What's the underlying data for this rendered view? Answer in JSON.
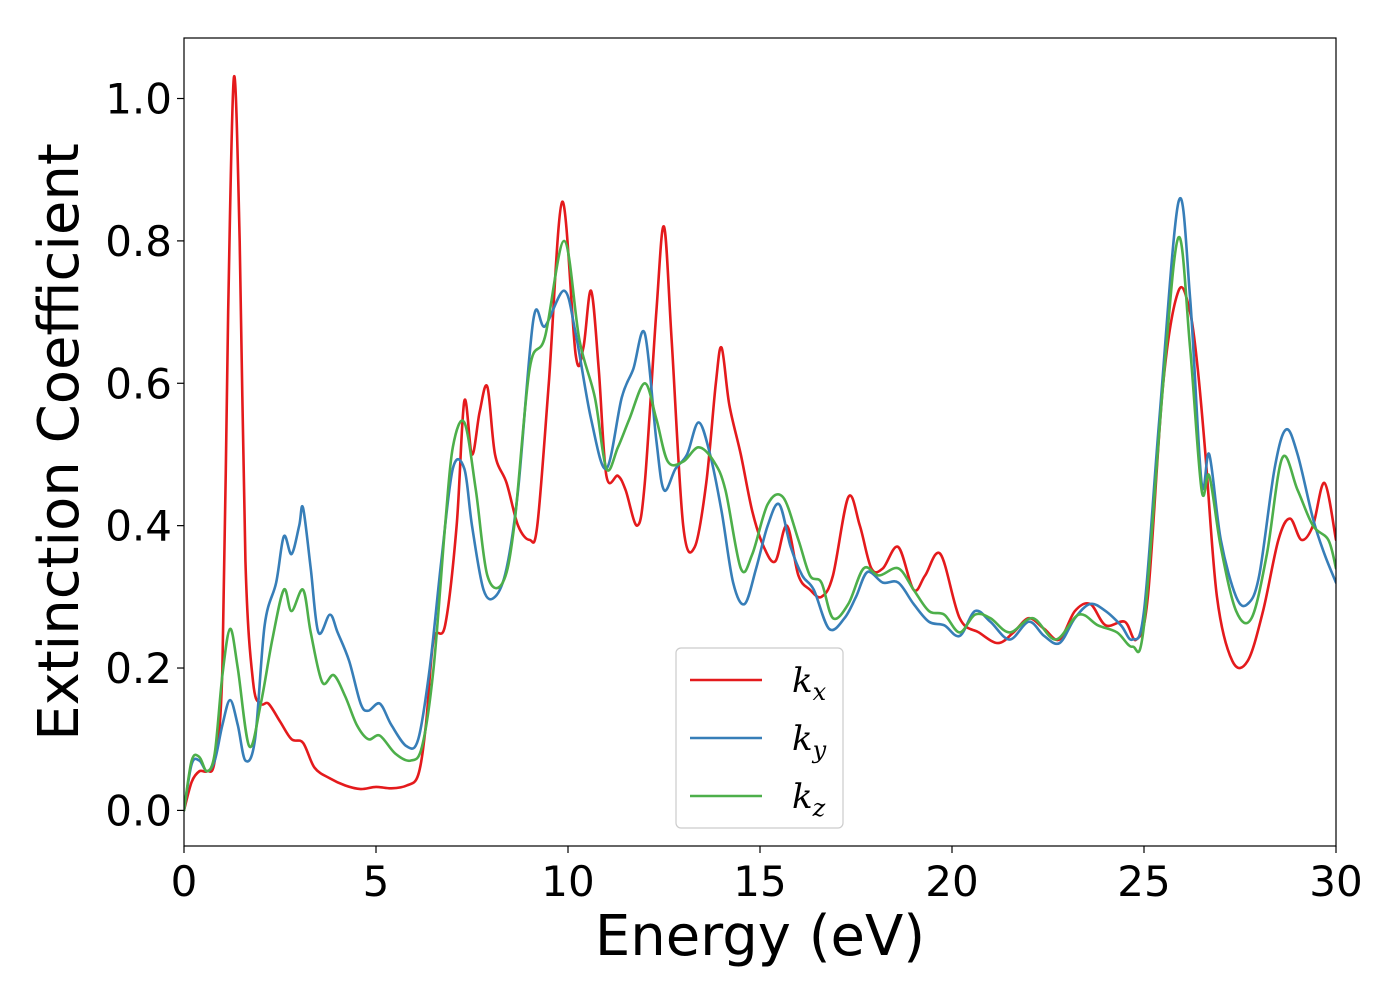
{
  "chart_data": {
    "type": "line",
    "title": "",
    "xlabel": "Energy (eV)",
    "ylabel": "Extinction Coefficient",
    "xlim": [
      0,
      30
    ],
    "ylim": [
      -0.05,
      1.085
    ],
    "x_ticks": [
      0,
      5,
      10,
      15,
      20,
      25,
      30
    ],
    "y_ticks": [
      0.0,
      0.2,
      0.4,
      0.6,
      0.8,
      1.0
    ],
    "x_tick_labels": [
      "0",
      "5",
      "10",
      "15",
      "20",
      "25",
      "30"
    ],
    "y_tick_labels": [
      "0.0",
      "0.2",
      "0.4",
      "0.6",
      "0.8",
      "1.0"
    ],
    "grid": false,
    "legend_position": "bottom-center",
    "series": [
      {
        "name": "kx",
        "base": "k",
        "sub": "x",
        "color": "#e41a1c",
        "points": [
          [
            0,
            0
          ],
          [
            0.2,
            0.04
          ],
          [
            0.4,
            0.055
          ],
          [
            0.6,
            0.055
          ],
          [
            0.8,
            0.07
          ],
          [
            1.0,
            0.2
          ],
          [
            1.15,
            0.7
          ],
          [
            1.3,
            1.03
          ],
          [
            1.45,
            0.8
          ],
          [
            1.6,
            0.35
          ],
          [
            1.8,
            0.18
          ],
          [
            2.0,
            0.15
          ],
          [
            2.2,
            0.15
          ],
          [
            2.5,
            0.125
          ],
          [
            2.8,
            0.1
          ],
          [
            3.1,
            0.095
          ],
          [
            3.4,
            0.06
          ],
          [
            3.8,
            0.045
          ],
          [
            4.2,
            0.035
          ],
          [
            4.6,
            0.03
          ],
          [
            5.0,
            0.033
          ],
          [
            5.4,
            0.031
          ],
          [
            5.8,
            0.035
          ],
          [
            6.1,
            0.05
          ],
          [
            6.3,
            0.12
          ],
          [
            6.5,
            0.24
          ],
          [
            6.8,
            0.26
          ],
          [
            7.1,
            0.4
          ],
          [
            7.3,
            0.575
          ],
          [
            7.5,
            0.5
          ],
          [
            7.7,
            0.56
          ],
          [
            7.9,
            0.595
          ],
          [
            8.1,
            0.5
          ],
          [
            8.4,
            0.46
          ],
          [
            8.7,
            0.4
          ],
          [
            9.0,
            0.38
          ],
          [
            9.2,
            0.4
          ],
          [
            9.5,
            0.6
          ],
          [
            9.85,
            0.855
          ],
          [
            10.2,
            0.64
          ],
          [
            10.4,
            0.65
          ],
          [
            10.6,
            0.73
          ],
          [
            10.8,
            0.62
          ],
          [
            11.0,
            0.47
          ],
          [
            11.3,
            0.47
          ],
          [
            11.5,
            0.45
          ],
          [
            11.8,
            0.4
          ],
          [
            12.0,
            0.46
          ],
          [
            12.3,
            0.7
          ],
          [
            12.5,
            0.82
          ],
          [
            12.7,
            0.66
          ],
          [
            13.0,
            0.4
          ],
          [
            13.3,
            0.37
          ],
          [
            13.6,
            0.46
          ],
          [
            13.85,
            0.6
          ],
          [
            14.0,
            0.65
          ],
          [
            14.2,
            0.57
          ],
          [
            14.5,
            0.5
          ],
          [
            14.8,
            0.42
          ],
          [
            15.1,
            0.37
          ],
          [
            15.4,
            0.35
          ],
          [
            15.7,
            0.4
          ],
          [
            16.0,
            0.33
          ],
          [
            16.3,
            0.31
          ],
          [
            16.6,
            0.3
          ],
          [
            16.9,
            0.33
          ],
          [
            17.3,
            0.44
          ],
          [
            17.6,
            0.4
          ],
          [
            17.9,
            0.34
          ],
          [
            18.2,
            0.34
          ],
          [
            18.6,
            0.37
          ],
          [
            19.0,
            0.31
          ],
          [
            19.3,
            0.33
          ],
          [
            19.7,
            0.36
          ],
          [
            20.2,
            0.27
          ],
          [
            20.7,
            0.25
          ],
          [
            21.2,
            0.235
          ],
          [
            21.6,
            0.25
          ],
          [
            22.0,
            0.27
          ],
          [
            22.4,
            0.255
          ],
          [
            22.8,
            0.24
          ],
          [
            23.2,
            0.28
          ],
          [
            23.6,
            0.29
          ],
          [
            24.0,
            0.26
          ],
          [
            24.5,
            0.265
          ],
          [
            24.8,
            0.24
          ],
          [
            25.1,
            0.3
          ],
          [
            25.5,
            0.6
          ],
          [
            25.9,
            0.73
          ],
          [
            26.2,
            0.7
          ],
          [
            26.4,
            0.62
          ],
          [
            26.6,
            0.5
          ],
          [
            26.9,
            0.3
          ],
          [
            27.3,
            0.21
          ],
          [
            27.7,
            0.21
          ],
          [
            28.1,
            0.28
          ],
          [
            28.5,
            0.38
          ],
          [
            28.8,
            0.41
          ],
          [
            29.1,
            0.38
          ],
          [
            29.4,
            0.4
          ],
          [
            29.7,
            0.46
          ],
          [
            30,
            0.38
          ]
        ]
      },
      {
        "name": "ky",
        "base": "k",
        "sub": "y",
        "color": "#377eb8",
        "points": [
          [
            0,
            0
          ],
          [
            0.2,
            0.065
          ],
          [
            0.4,
            0.07
          ],
          [
            0.6,
            0.055
          ],
          [
            0.8,
            0.07
          ],
          [
            1.0,
            0.12
          ],
          [
            1.2,
            0.155
          ],
          [
            1.4,
            0.12
          ],
          [
            1.6,
            0.07
          ],
          [
            1.85,
            0.1
          ],
          [
            2.1,
            0.26
          ],
          [
            2.4,
            0.32
          ],
          [
            2.6,
            0.385
          ],
          [
            2.8,
            0.36
          ],
          [
            3.0,
            0.4
          ],
          [
            3.1,
            0.425
          ],
          [
            3.3,
            0.34
          ],
          [
            3.5,
            0.25
          ],
          [
            3.8,
            0.275
          ],
          [
            4.0,
            0.25
          ],
          [
            4.3,
            0.21
          ],
          [
            4.6,
            0.15
          ],
          [
            4.8,
            0.14
          ],
          [
            5.1,
            0.15
          ],
          [
            5.4,
            0.12
          ],
          [
            5.8,
            0.09
          ],
          [
            6.1,
            0.1
          ],
          [
            6.4,
            0.2
          ],
          [
            6.7,
            0.35
          ],
          [
            7.0,
            0.48
          ],
          [
            7.3,
            0.48
          ],
          [
            7.5,
            0.4
          ],
          [
            7.8,
            0.31
          ],
          [
            8.1,
            0.3
          ],
          [
            8.4,
            0.34
          ],
          [
            8.7,
            0.45
          ],
          [
            9.1,
            0.69
          ],
          [
            9.4,
            0.68
          ],
          [
            9.9,
            0.73
          ],
          [
            10.2,
            0.67
          ],
          [
            10.6,
            0.55
          ],
          [
            11.0,
            0.48
          ],
          [
            11.4,
            0.58
          ],
          [
            11.7,
            0.62
          ],
          [
            12.0,
            0.67
          ],
          [
            12.3,
            0.52
          ],
          [
            12.5,
            0.45
          ],
          [
            12.8,
            0.48
          ],
          [
            13.1,
            0.5
          ],
          [
            13.4,
            0.545
          ],
          [
            13.7,
            0.5
          ],
          [
            14.0,
            0.42
          ],
          [
            14.3,
            0.32
          ],
          [
            14.6,
            0.29
          ],
          [
            14.9,
            0.34
          ],
          [
            15.2,
            0.4
          ],
          [
            15.5,
            0.43
          ],
          [
            15.8,
            0.37
          ],
          [
            16.1,
            0.33
          ],
          [
            16.4,
            0.31
          ],
          [
            16.8,
            0.255
          ],
          [
            17.2,
            0.27
          ],
          [
            17.5,
            0.3
          ],
          [
            17.8,
            0.335
          ],
          [
            18.2,
            0.32
          ],
          [
            18.6,
            0.32
          ],
          [
            19.0,
            0.29
          ],
          [
            19.4,
            0.265
          ],
          [
            19.8,
            0.26
          ],
          [
            20.2,
            0.245
          ],
          [
            20.6,
            0.28
          ],
          [
            21.0,
            0.265
          ],
          [
            21.5,
            0.24
          ],
          [
            22.0,
            0.265
          ],
          [
            22.4,
            0.245
          ],
          [
            22.8,
            0.235
          ],
          [
            23.2,
            0.27
          ],
          [
            23.6,
            0.29
          ],
          [
            24.0,
            0.28
          ],
          [
            24.4,
            0.26
          ],
          [
            24.7,
            0.24
          ],
          [
            25.0,
            0.28
          ],
          [
            25.4,
            0.55
          ],
          [
            25.9,
            0.855
          ],
          [
            26.2,
            0.72
          ],
          [
            26.5,
            0.46
          ],
          [
            26.7,
            0.5
          ],
          [
            27.0,
            0.38
          ],
          [
            27.4,
            0.3
          ],
          [
            27.7,
            0.29
          ],
          [
            28.0,
            0.33
          ],
          [
            28.4,
            0.48
          ],
          [
            28.7,
            0.535
          ],
          [
            29.0,
            0.5
          ],
          [
            29.4,
            0.41
          ],
          [
            29.7,
            0.36
          ],
          [
            30,
            0.32
          ]
        ]
      },
      {
        "name": "kz",
        "base": "k",
        "sub": "z",
        "color": "#4daf4a",
        "points": [
          [
            0,
            0
          ],
          [
            0.2,
            0.07
          ],
          [
            0.4,
            0.075
          ],
          [
            0.6,
            0.055
          ],
          [
            0.8,
            0.08
          ],
          [
            1.0,
            0.19
          ],
          [
            1.2,
            0.255
          ],
          [
            1.4,
            0.2
          ],
          [
            1.7,
            0.09
          ],
          [
            2.0,
            0.15
          ],
          [
            2.3,
            0.24
          ],
          [
            2.6,
            0.31
          ],
          [
            2.8,
            0.28
          ],
          [
            3.1,
            0.31
          ],
          [
            3.3,
            0.25
          ],
          [
            3.6,
            0.18
          ],
          [
            3.9,
            0.19
          ],
          [
            4.2,
            0.16
          ],
          [
            4.5,
            0.12
          ],
          [
            4.8,
            0.1
          ],
          [
            5.1,
            0.105
          ],
          [
            5.5,
            0.08
          ],
          [
            5.9,
            0.07
          ],
          [
            6.2,
            0.09
          ],
          [
            6.5,
            0.2
          ],
          [
            6.8,
            0.4
          ],
          [
            7.0,
            0.51
          ],
          [
            7.3,
            0.545
          ],
          [
            7.6,
            0.45
          ],
          [
            7.9,
            0.33
          ],
          [
            8.3,
            0.32
          ],
          [
            8.6,
            0.4
          ],
          [
            9.0,
            0.62
          ],
          [
            9.4,
            0.665
          ],
          [
            9.9,
            0.8
          ],
          [
            10.3,
            0.66
          ],
          [
            10.7,
            0.58
          ],
          [
            11.0,
            0.48
          ],
          [
            11.3,
            0.51
          ],
          [
            11.6,
            0.55
          ],
          [
            12.0,
            0.6
          ],
          [
            12.3,
            0.55
          ],
          [
            12.6,
            0.49
          ],
          [
            13.0,
            0.49
          ],
          [
            13.4,
            0.51
          ],
          [
            13.8,
            0.49
          ],
          [
            14.1,
            0.45
          ],
          [
            14.5,
            0.34
          ],
          [
            14.8,
            0.36
          ],
          [
            15.2,
            0.43
          ],
          [
            15.6,
            0.44
          ],
          [
            16.0,
            0.38
          ],
          [
            16.3,
            0.33
          ],
          [
            16.6,
            0.32
          ],
          [
            16.9,
            0.27
          ],
          [
            17.3,
            0.29
          ],
          [
            17.7,
            0.34
          ],
          [
            18.1,
            0.33
          ],
          [
            18.6,
            0.34
          ],
          [
            19.0,
            0.31
          ],
          [
            19.4,
            0.28
          ],
          [
            19.8,
            0.275
          ],
          [
            20.2,
            0.25
          ],
          [
            20.6,
            0.275
          ],
          [
            21.0,
            0.27
          ],
          [
            21.5,
            0.25
          ],
          [
            22.1,
            0.27
          ],
          [
            22.7,
            0.24
          ],
          [
            23.3,
            0.275
          ],
          [
            23.8,
            0.26
          ],
          [
            24.3,
            0.25
          ],
          [
            24.7,
            0.23
          ],
          [
            25.0,
            0.26
          ],
          [
            25.5,
            0.6
          ],
          [
            25.9,
            0.805
          ],
          [
            26.2,
            0.65
          ],
          [
            26.5,
            0.45
          ],
          [
            26.7,
            0.47
          ],
          [
            27.0,
            0.37
          ],
          [
            27.4,
            0.28
          ],
          [
            27.8,
            0.27
          ],
          [
            28.2,
            0.36
          ],
          [
            28.6,
            0.495
          ],
          [
            29.0,
            0.45
          ],
          [
            29.4,
            0.4
          ],
          [
            29.8,
            0.38
          ],
          [
            30,
            0.34
          ]
        ]
      }
    ]
  }
}
